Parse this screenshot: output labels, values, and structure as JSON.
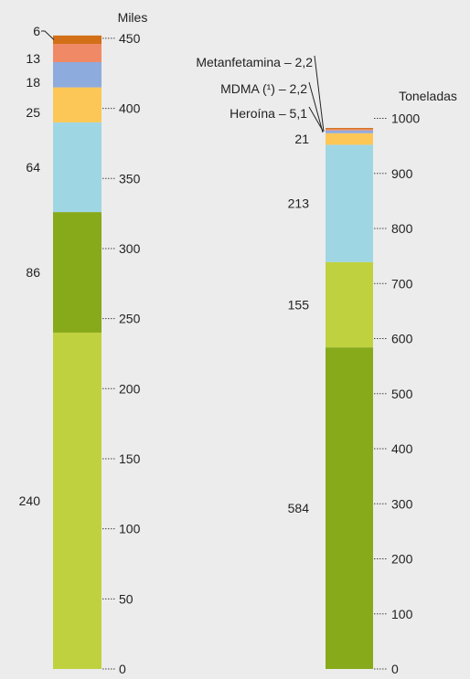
{
  "chart_data": [
    {
      "type": "bar",
      "stacked": true,
      "ylabel": "Miles",
      "ylim": [
        0,
        450
      ],
      "yticks": [
        0,
        50,
        100,
        150,
        200,
        250,
        300,
        350,
        400,
        450
      ],
      "segments": [
        {
          "value": 240,
          "label": "240",
          "color": "#bfd13f"
        },
        {
          "value": 86,
          "label": "86",
          "color": "#86aa1a"
        },
        {
          "value": 64,
          "label": "64",
          "color": "#9fd6e4"
        },
        {
          "value": 25,
          "label": "25",
          "color": "#fdc757"
        },
        {
          "value": 18,
          "label": "18",
          "color": "#8eabde"
        },
        {
          "value": 13,
          "label": "13",
          "color": "#f08a66"
        },
        {
          "value": 6,
          "label": "6",
          "color": "#d36f16"
        }
      ]
    },
    {
      "type": "bar",
      "stacked": true,
      "ylabel": "Toneladas",
      "ylim": [
        0,
        1000
      ],
      "yticks": [
        0,
        100,
        200,
        300,
        400,
        500,
        600,
        700,
        800,
        900,
        1000
      ],
      "segments": [
        {
          "value": 584,
          "label": "584",
          "color": "#86aa1a"
        },
        {
          "value": 155,
          "label": "155",
          "color": "#bfd13f"
        },
        {
          "value": 213,
          "label": "213",
          "color": "#9fd6e4"
        },
        {
          "value": 21,
          "label": "21",
          "color": "#fdc757"
        },
        {
          "value": 5.1,
          "label": "Heroína – 5,1",
          "color": "#8eabde"
        },
        {
          "value": 2.2,
          "label": "MDMA (¹) – 2,2",
          "color": "#f08a66"
        },
        {
          "value": 2.2,
          "label": "Metanfetamina – 2,2",
          "color": "#d36f16"
        }
      ]
    }
  ]
}
